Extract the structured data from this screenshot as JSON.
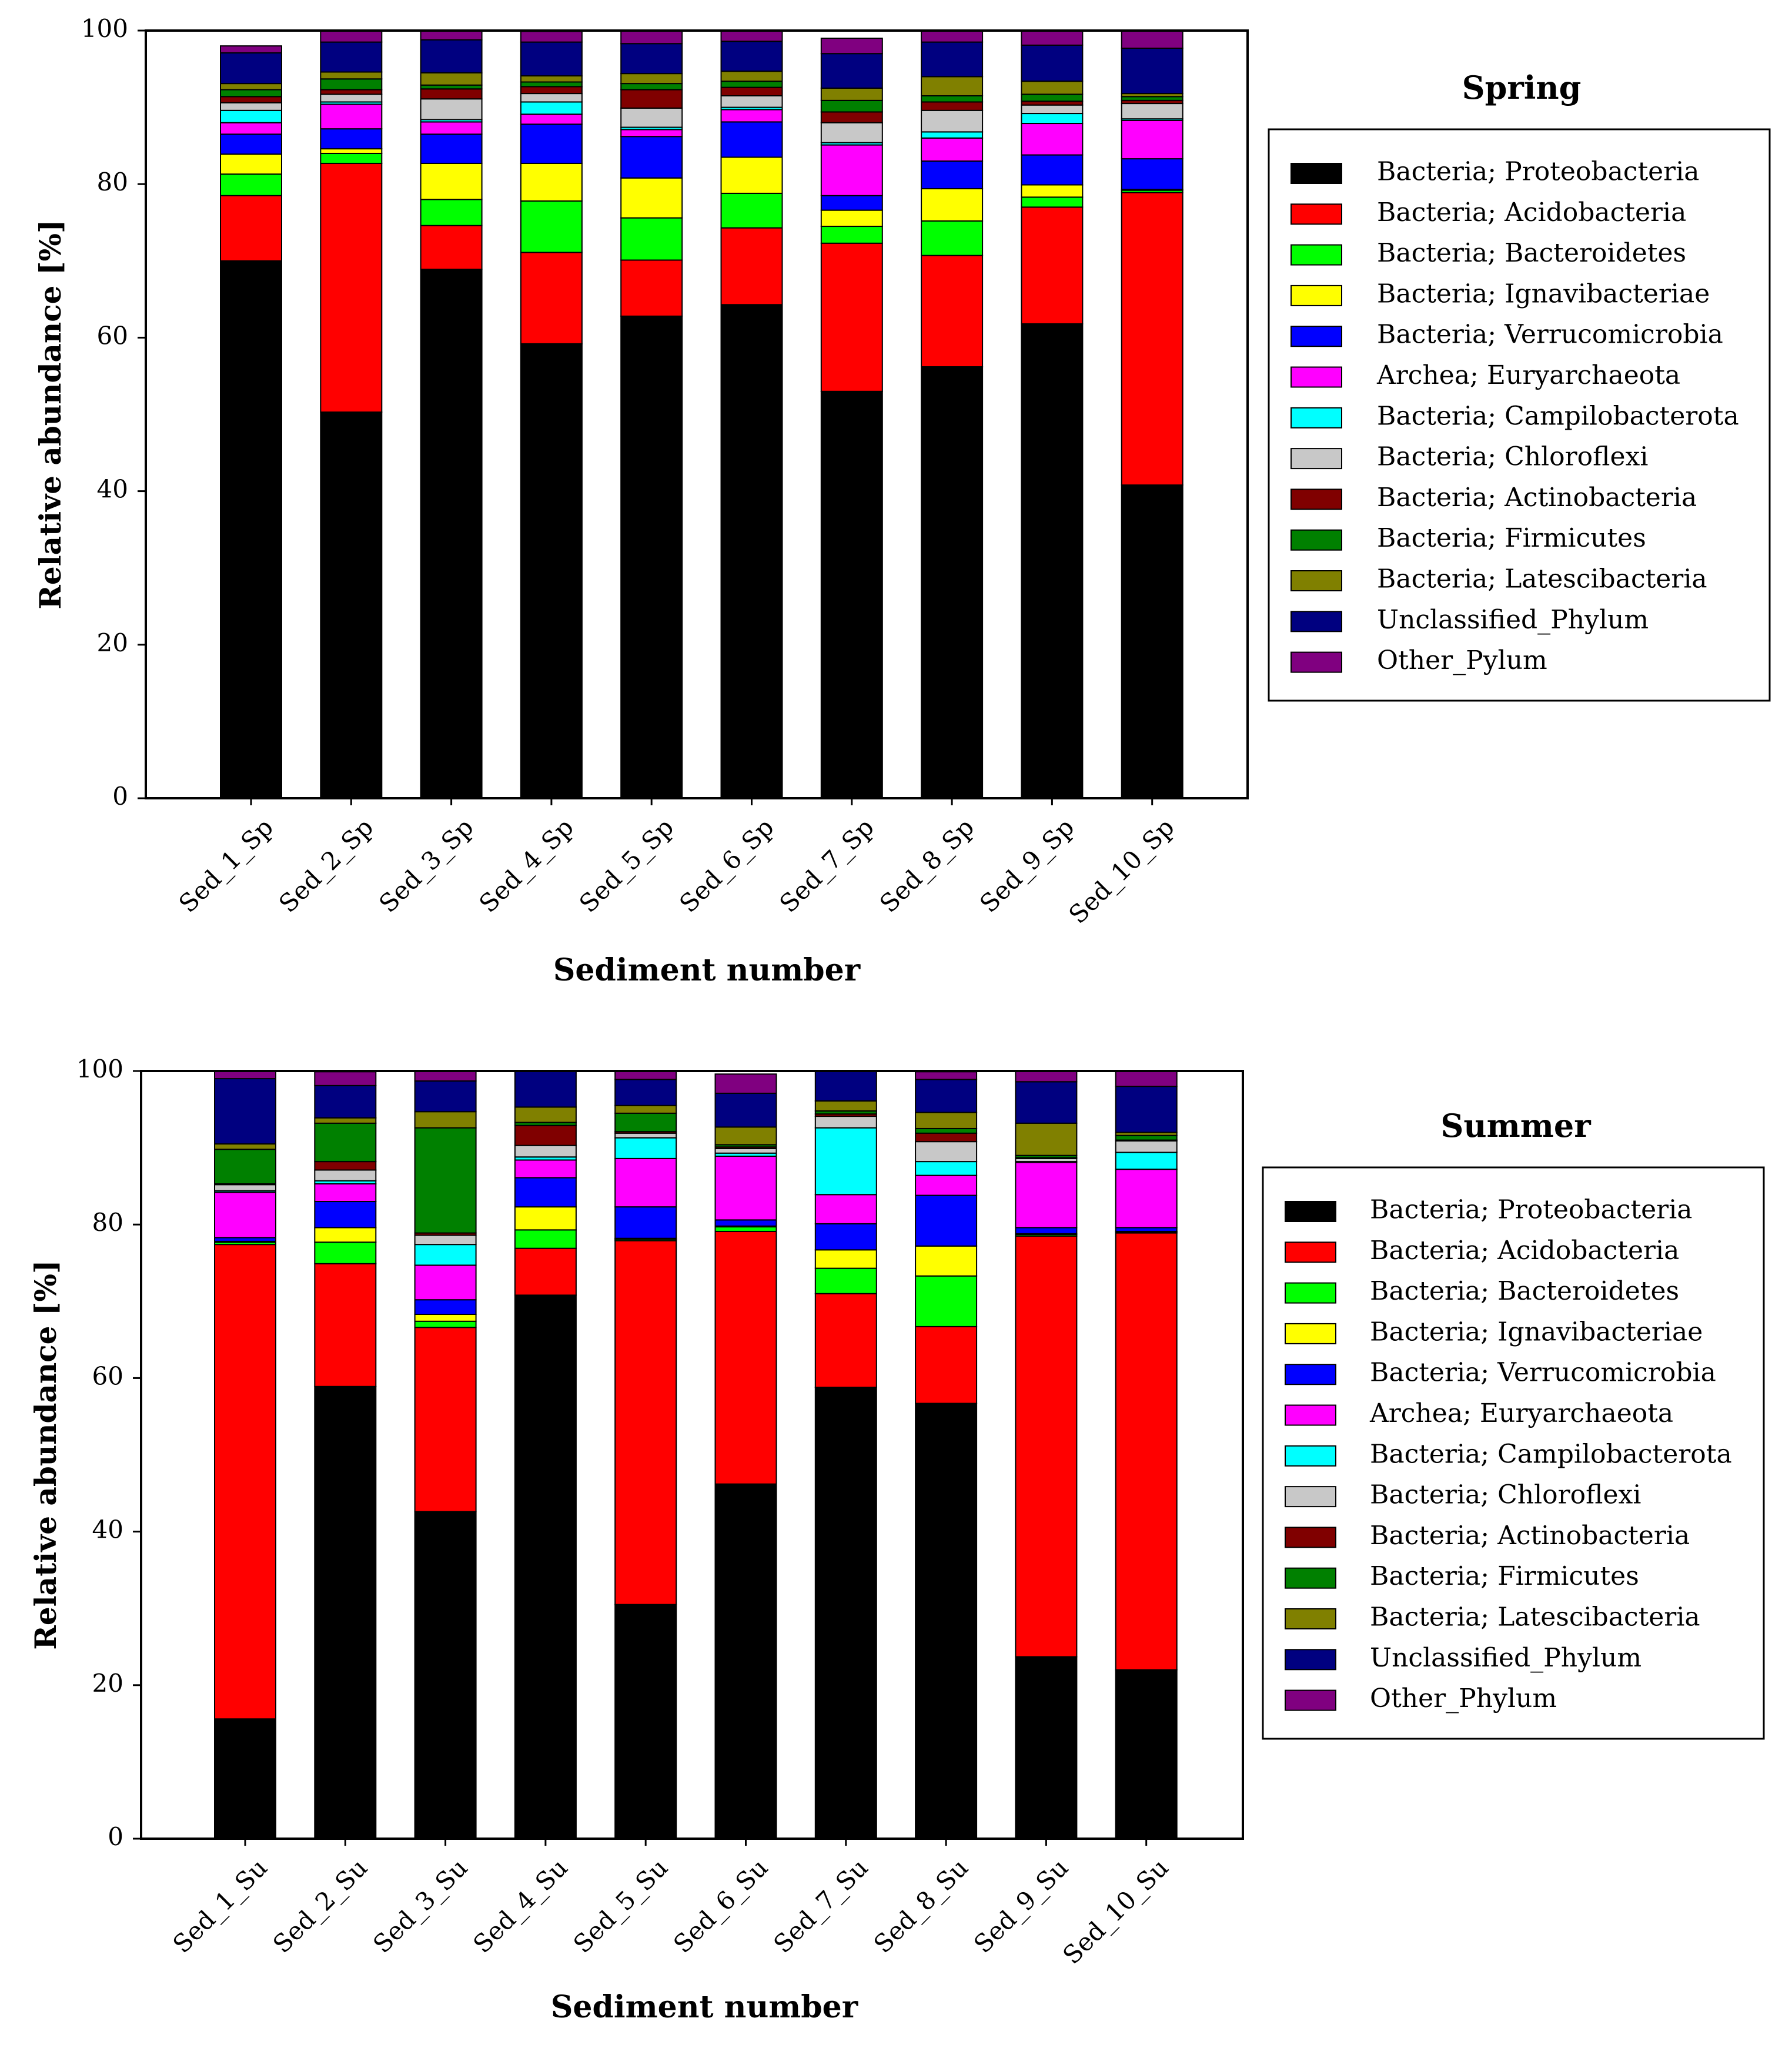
{
  "chart_data": [
    {
      "type": "bar",
      "stacked": true,
      "title": "Spring",
      "xlabel": "Sediment number",
      "ylabel": "Relative abundance [%]",
      "ylim": [
        0,
        100
      ],
      "yticks": [
        "0",
        "20",
        "40",
        "60",
        "80",
        "100"
      ],
      "categories": [
        "Sed_1_Sp",
        "Sed_2_Sp",
        "Sed_3_Sp",
        "Sed_4_Sp",
        "Sed_5_Sp",
        "Sed_6_Sp",
        "Sed_7_Sp",
        "Sed_8_Sp",
        "Sed_9_Sp",
        "Sed_10_Sp"
      ],
      "series": [
        {
          "name": "Bacteria; Proteobacteria",
          "color": "#000000",
          "values": [
            70,
            50.3,
            68.9,
            59.2,
            62.8,
            64.3,
            53,
            56.2,
            61.8,
            40.8
          ]
        },
        {
          "name": "Bacteria; Acidobacteria",
          "color": "#ff0000",
          "values": [
            8.5,
            32.4,
            5.7,
            11.9,
            7.3,
            10,
            19.3,
            14.5,
            15.2,
            38.1
          ]
        },
        {
          "name": "Bacteria; Bacteroidetes",
          "color": "#00ff00",
          "values": [
            2.8,
            1.3,
            3.4,
            6.7,
            5.5,
            4.5,
            2.2,
            4.5,
            1.3,
            0.3
          ]
        },
        {
          "name": "Bacteria; Ignavibacteriae",
          "color": "#ffff00",
          "values": [
            2.6,
            0.6,
            4.7,
            4.9,
            5.2,
            4.7,
            2.1,
            4.2,
            1.6,
            0.1
          ]
        },
        {
          "name": "Bacteria; Verrucomicrobia",
          "color": "#0000ff",
          "values": [
            2.6,
            2.6,
            3.8,
            5.1,
            5.4,
            4.6,
            1.9,
            3.6,
            3.9,
            4
          ]
        },
        {
          "name": "Archea; Euryarchaeota",
          "color": "#ff00ff",
          "values": [
            1.5,
            3.2,
            1.6,
            1.3,
            0.9,
            1.6,
            6.6,
            3,
            4.1,
            5
          ]
        },
        {
          "name": "Bacteria; Campilobacterota",
          "color": "#00ffff",
          "values": [
            1.6,
            0.3,
            0.3,
            1.6,
            0.3,
            0.3,
            0.3,
            0.8,
            1.3,
            0.2
          ]
        },
        {
          "name": "Bacteria; Chloroflexi",
          "color": "#c8c8c8",
          "values": [
            1,
            1,
            2.7,
            1.1,
            2.5,
            1.5,
            2.6,
            2.8,
            1.1,
            2
          ]
        },
        {
          "name": "Bacteria; Actinobacteria",
          "color": "#800000",
          "values": [
            0.8,
            0.6,
            1.3,
            0.9,
            2.4,
            1.1,
            1.4,
            1.1,
            0.5,
            0.4
          ]
        },
        {
          "name": "Bacteria; Firmicutes",
          "color": "#008000",
          "values": [
            0.9,
            1.4,
            0.5,
            0.6,
            0.8,
            0.8,
            1.5,
            0.8,
            0.9,
            0.5
          ]
        },
        {
          "name": "Bacteria; Latescibacteria",
          "color": "#808000",
          "values": [
            0.8,
            0.9,
            1.6,
            0.8,
            1.3,
            1.3,
            1.6,
            2.5,
            1.7,
            0.4
          ]
        },
        {
          "name": "Unclassified_Phylum",
          "color": "#000080",
          "values": [
            4,
            3.9,
            4.3,
            4.4,
            3.9,
            3.9,
            4.5,
            4.5,
            4.7,
            5.9
          ]
        },
        {
          "name": "Other_Pylum",
          "color": "#800080",
          "values": [
            0.9,
            1.5,
            1.2,
            1.4,
            1.7,
            1.4,
            2,
            1.5,
            1.9,
            2.3
          ]
        }
      ]
    },
    {
      "type": "bar",
      "stacked": true,
      "title": "Summer",
      "xlabel": "Sediment number",
      "ylabel": "Relative abundance [%]",
      "ylim": [
        0,
        100
      ],
      "yticks": [
        "0",
        "20",
        "40",
        "60",
        "80",
        "100"
      ],
      "categories": [
        "Sed_1_Su",
        "Sed_2_Su",
        "Sed_3_Su",
        "Sed_4_Su",
        "Sed_5_Su",
        "Sed_6_Su",
        "Sed_7_Su",
        "Sed_8_Su",
        "Sed_9_Su",
        "Sed_10_Su"
      ],
      "series": [
        {
          "name": "Bacteria; Proteobacteria",
          "color": "#000000",
          "values": [
            15.6,
            58.9,
            42.6,
            70.8,
            30.5,
            46.2,
            58.8,
            56.7,
            23.7,
            22
          ]
        },
        {
          "name": "Bacteria; Acidobacteria",
          "color": "#ff0000",
          "values": [
            61.8,
            16,
            24,
            6.1,
            47.4,
            32.9,
            12.2,
            10,
            54.8,
            56.9
          ]
        },
        {
          "name": "Bacteria; Bacteroidetes",
          "color": "#00ff00",
          "values": [
            0.3,
            2.8,
            0.8,
            2.4,
            0.2,
            0.6,
            3.3,
            6.6,
            0.2,
            0.1
          ]
        },
        {
          "name": "Bacteria; Ignavibacteriae",
          "color": "#ffff00",
          "values": [
            0.1,
            1.9,
            0.9,
            3,
            0.1,
            0.1,
            2.4,
            3.9,
            0.1,
            0.1
          ]
        },
        {
          "name": "Bacteria; Verrucomicrobia",
          "color": "#0000ff",
          "values": [
            0.5,
            3.4,
            1.9,
            3.8,
            4.1,
            0.8,
            3.4,
            6.6,
            0.8,
            0.5
          ]
        },
        {
          "name": "Archea; Euryarchaeota",
          "color": "#ff00ff",
          "values": [
            5.9,
            2.3,
            4.5,
            2.3,
            6.3,
            8.3,
            3.8,
            2.6,
            8.5,
            7.6
          ]
        },
        {
          "name": "Bacteria; Campilobacterota",
          "color": "#00ffff",
          "values": [
            0.2,
            0.4,
            2.7,
            0.4,
            2.7,
            0.4,
            8.7,
            1.8,
            0.1,
            2.2
          ]
        },
        {
          "name": "Bacteria; Chloroflexi",
          "color": "#c8c8c8",
          "values": [
            0.8,
            1.4,
            1.2,
            1.5,
            0.6,
            0.6,
            1.5,
            2.6,
            0.4,
            1.5
          ]
        },
        {
          "name": "Bacteria; Actinobacteria",
          "color": "#800000",
          "values": [
            0.1,
            1.1,
            0.3,
            2.6,
            0.2,
            0.2,
            0.3,
            1.1,
            0.1,
            0.1
          ]
        },
        {
          "name": "Bacteria; Firmicutes",
          "color": "#008000",
          "values": [
            4.5,
            5,
            13.7,
            0.4,
            2.4,
            0.3,
            0.4,
            0.6,
            0.3,
            0.6
          ]
        },
        {
          "name": "Bacteria; Latescibacteria",
          "color": "#808000",
          "values": [
            0.7,
            0.7,
            2.1,
            2,
            1,
            2.3,
            1.3,
            2.1,
            4.2,
            0.4
          ]
        },
        {
          "name": "Unclassified_Phylum",
          "color": "#000080",
          "values": [
            8.5,
            4.2,
            4,
            4.7,
            3.4,
            4.4,
            3.9,
            4.3,
            5.4,
            6
          ]
        },
        {
          "name": "Other_Phylum",
          "color": "#800080",
          "values": [
            1,
            1.8,
            1.3,
            0,
            1.1,
            2.5,
            0,
            1,
            1.4,
            2
          ]
        }
      ]
    }
  ]
}
